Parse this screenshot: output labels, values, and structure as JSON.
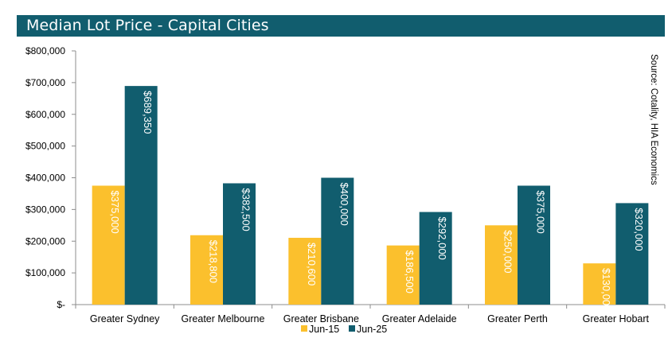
{
  "title": "Median Lot Price - Capital Cities",
  "chart_data": {
    "type": "bar",
    "categories": [
      "Greater Sydney",
      "Greater Melbourne",
      "Greater Brisbane",
      "Greater Adelaide",
      "Greater Perth",
      "Greater Hobart"
    ],
    "series": [
      {
        "name": "Jun-15",
        "color": "#fbc02d",
        "values": [
          375000,
          218800,
          210600,
          186500,
          250000,
          130000
        ],
        "labels": [
          "$375,000",
          "$218,800",
          "$210,600",
          "$186,500",
          "$250,000",
          "$130,000"
        ]
      },
      {
        "name": "Jun-25",
        "color": "#115d6e",
        "values": [
          689350,
          382500,
          400000,
          292000,
          375000,
          320000
        ],
        "labels": [
          "$689,350",
          "$382,500",
          "$400,000",
          "$292,000",
          "$375,000",
          "$320,000"
        ]
      }
    ],
    "yticks": [
      0,
      100000,
      200000,
      300000,
      400000,
      500000,
      600000,
      700000,
      800000
    ],
    "ytick_labels": [
      "$-",
      "$100,000",
      "$200,000",
      "$300,000",
      "$400,000",
      "$500,000",
      "$600,000",
      "$700,000",
      "$800,000"
    ],
    "ylim": [
      0,
      800000
    ],
    "legend_position": "bottom-center",
    "annotation": "Source: Cotality, HIA Economics"
  }
}
